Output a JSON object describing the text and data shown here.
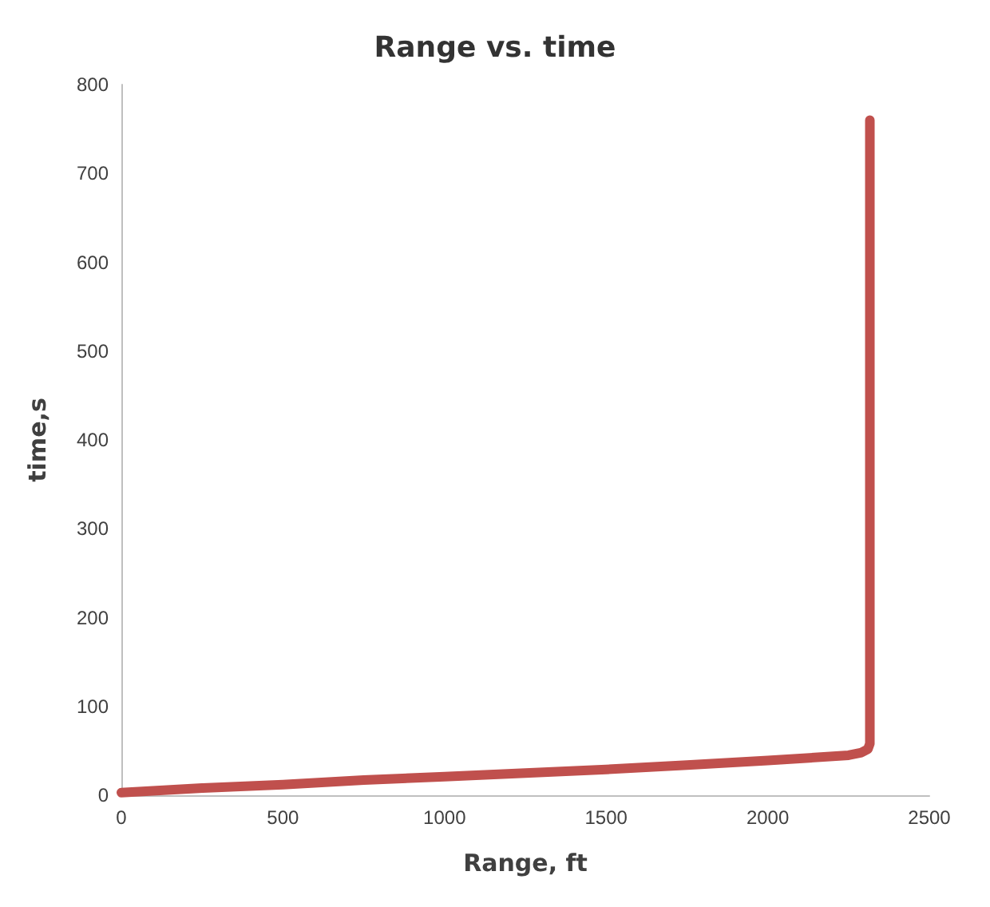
{
  "chart_data": {
    "type": "line",
    "title": "Range vs. time",
    "xlabel": "Range, ft",
    "ylabel": "time,s",
    "x": [
      0,
      250,
      500,
      750,
      1000,
      1250,
      1500,
      1750,
      2000,
      2250,
      2290,
      2310,
      2316,
      2316
    ],
    "series": [
      {
        "color": "#c0504d",
        "values": [
          3,
          8,
          12,
          17,
          21,
          25,
          29,
          34,
          39,
          45,
          48,
          52,
          58,
          760
        ]
      }
    ],
    "xlim": [
      0,
      2500
    ],
    "xticks": [
      0,
      500,
      1000,
      1500,
      2000,
      2500
    ],
    "ylim": [
      0,
      800
    ],
    "yticks": [
      0,
      100,
      200,
      300,
      400,
      500,
      600,
      700,
      800
    ],
    "grid": false,
    "marker": "none",
    "line_style": "solid"
  }
}
